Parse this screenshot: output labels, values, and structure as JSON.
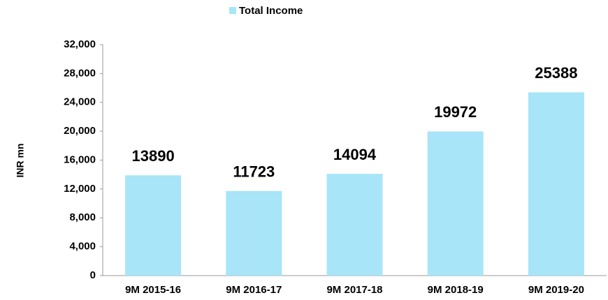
{
  "chart_data": {
    "type": "bar",
    "y_label": "INR mn",
    "categories": [
      "9M 2015-16",
      "9M 2016-17",
      "9M 2017-18",
      "9M 2018-19",
      "9M 2019-20"
    ],
    "series": [
      {
        "name": "Total Income",
        "color": "#a8e5f8",
        "values": [
          13890,
          11723,
          14094,
          19972,
          25388
        ]
      }
    ],
    "ylim": [
      0,
      32000
    ],
    "yticks": [
      0,
      {
        "value": 4000,
        "label": "4,000"
      },
      {
        "value": 8000,
        "label": "8,000"
      },
      {
        "value": 12000,
        "label": "12,000"
      },
      {
        "value": 16000,
        "label": "16,000"
      },
      {
        "value": 20000,
        "label": "20,000"
      },
      {
        "value": 24000,
        "label": "24,000"
      },
      {
        "value": 28000,
        "label": "28,000"
      },
      {
        "value": 32000,
        "label": "32,000"
      }
    ],
    "grid": false,
    "legend": "top",
    "data_labels": true
  }
}
